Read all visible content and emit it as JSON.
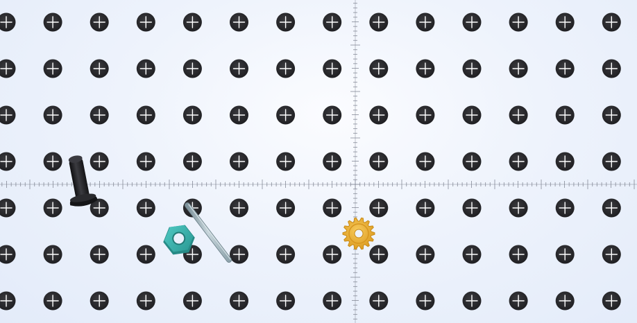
{
  "workspace": {
    "grid": {
      "rows": 7,
      "columns": 14,
      "hole_icon": "plus-crosshair-icon"
    },
    "axes": {
      "visible": true,
      "ticks": true
    },
    "colors": {
      "background": "#e8effb",
      "hole": "#2a2a2d",
      "hole_cross": "#ffffff",
      "axis": "#7d8290",
      "bolt": "#1f1f22",
      "rod": "#9fb2bb",
      "nut": "#3bb2ad",
      "gear": "#f0b53b"
    },
    "parts": [
      {
        "name": "bolt",
        "icon": "black-bolt-icon"
      },
      {
        "name": "threaded-rod",
        "icon": "steel-rod-icon"
      },
      {
        "name": "hex-nut",
        "icon": "teal-hex-nut-icon"
      },
      {
        "name": "gear",
        "icon": "yellow-gear-icon"
      }
    ]
  }
}
